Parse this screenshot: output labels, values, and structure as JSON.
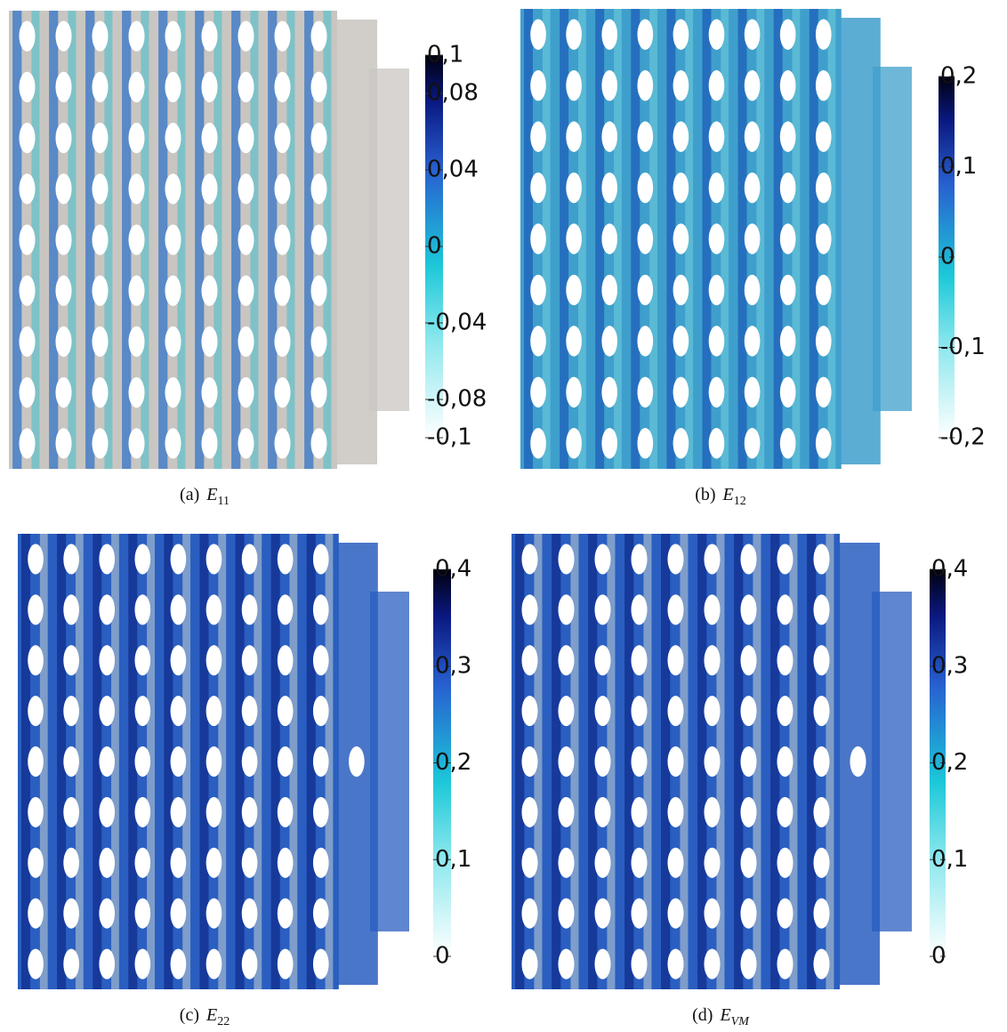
{
  "panels": [
    {
      "label": "(a)",
      "symbol": "E",
      "subscript": "11",
      "colorbar": {
        "lim": [
          -0.1,
          0.1
        ],
        "ticks": [
          {
            "value": 0.1,
            "label": "0,1"
          },
          {
            "value": 0.08,
            "label": "0,08"
          },
          {
            "value": 0.04,
            "label": "0,04"
          },
          0,
          {
            "value": -0.04,
            "label": "-0,04"
          },
          {
            "value": -0.08,
            "label": "-0,08"
          },
          {
            "value": -0.1,
            "label": "-0,1"
          }
        ]
      }
    },
    {
      "label": "(b)",
      "symbol": "E",
      "subscript": "12",
      "colorbar": {
        "lim": [
          -0.2,
          0.2
        ],
        "ticks": [
          {
            "value": 0.2,
            "label": "0,2"
          },
          {
            "value": 0.1,
            "label": "0,1"
          },
          0,
          {
            "value": -0.1,
            "label": "-0,1"
          },
          {
            "value": -0.2,
            "label": "-0,2"
          }
        ]
      }
    },
    {
      "label": "(c)",
      "symbol": "E",
      "subscript": "22",
      "colorbar": {
        "lim": [
          0,
          0.4
        ],
        "ticks": [
          {
            "value": 0.4,
            "label": "0,4"
          },
          {
            "value": 0.3,
            "label": "0,3"
          },
          {
            "value": 0.2,
            "label": "0,2"
          },
          {
            "value": 0.1,
            "label": "0,1"
          },
          0
        ]
      }
    },
    {
      "label": "(d)",
      "symbol": "E",
      "subscript": "VM",
      "colorbar": {
        "lim": [
          0,
          0.4
        ],
        "ticks": [
          {
            "value": 0.4,
            "label": "0,4"
          },
          {
            "value": 0.3,
            "label": "0,3"
          },
          {
            "value": 0.2,
            "label": "0,2"
          },
          {
            "value": 0.1,
            "label": "0,1"
          },
          0
        ]
      }
    }
  ]
}
